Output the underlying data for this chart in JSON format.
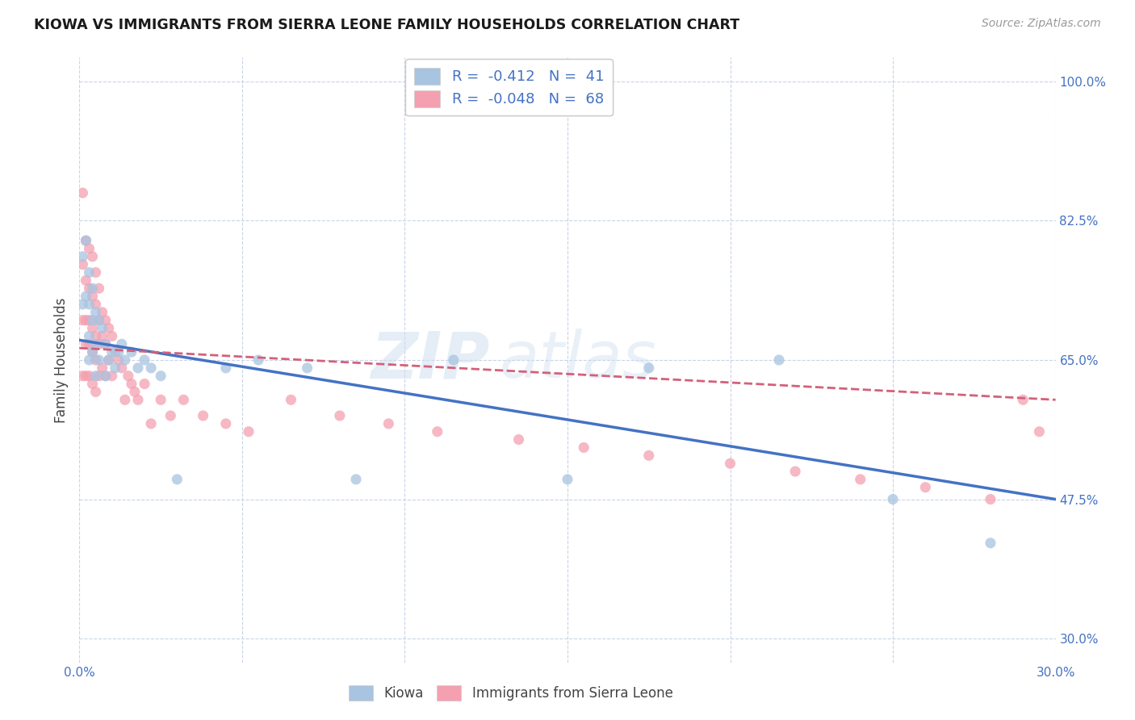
{
  "title": "KIOWA VS IMMIGRANTS FROM SIERRA LEONE FAMILY HOUSEHOLDS CORRELATION CHART",
  "source": "Source: ZipAtlas.com",
  "ylabel": "Family Households",
  "yticks": [
    "30.0%",
    "47.5%",
    "65.0%",
    "82.5%",
    "100.0%"
  ],
  "ytick_vals": [
    0.3,
    0.475,
    0.65,
    0.825,
    1.0
  ],
  "xlim": [
    0.0,
    0.3
  ],
  "ylim": [
    0.27,
    1.03
  ],
  "legend_kiowa_R": "-0.412",
  "legend_kiowa_N": "41",
  "legend_sl_R": "-0.048",
  "legend_sl_N": "68",
  "kiowa_color": "#a8c4e0",
  "sl_color": "#f4a0b0",
  "kiowa_line_color": "#4472c4",
  "sl_line_color": "#d4607a",
  "watermark": "ZIPatlas",
  "background_color": "#ffffff",
  "grid_color": "#c8d4e8",
  "kiowa_scatter_x": [
    0.001,
    0.001,
    0.002,
    0.002,
    0.003,
    0.003,
    0.003,
    0.003,
    0.004,
    0.004,
    0.004,
    0.005,
    0.005,
    0.005,
    0.006,
    0.006,
    0.007,
    0.008,
    0.008,
    0.009,
    0.01,
    0.011,
    0.012,
    0.013,
    0.014,
    0.016,
    0.018,
    0.02,
    0.022,
    0.025,
    0.03,
    0.045,
    0.055,
    0.07,
    0.085,
    0.115,
    0.15,
    0.175,
    0.215,
    0.25,
    0.28
  ],
  "kiowa_scatter_y": [
    0.78,
    0.72,
    0.8,
    0.73,
    0.76,
    0.72,
    0.68,
    0.65,
    0.74,
    0.7,
    0.66,
    0.71,
    0.67,
    0.63,
    0.7,
    0.65,
    0.69,
    0.67,
    0.63,
    0.65,
    0.66,
    0.64,
    0.66,
    0.67,
    0.65,
    0.66,
    0.64,
    0.65,
    0.64,
    0.63,
    0.5,
    0.64,
    0.65,
    0.64,
    0.5,
    0.65,
    0.5,
    0.64,
    0.65,
    0.475,
    0.42
  ],
  "sl_scatter_x": [
    0.001,
    0.001,
    0.001,
    0.001,
    0.002,
    0.002,
    0.002,
    0.002,
    0.002,
    0.003,
    0.003,
    0.003,
    0.003,
    0.003,
    0.004,
    0.004,
    0.004,
    0.004,
    0.004,
    0.005,
    0.005,
    0.005,
    0.005,
    0.005,
    0.006,
    0.006,
    0.006,
    0.006,
    0.007,
    0.007,
    0.007,
    0.008,
    0.008,
    0.008,
    0.009,
    0.009,
    0.01,
    0.01,
    0.011,
    0.012,
    0.013,
    0.014,
    0.015,
    0.016,
    0.017,
    0.018,
    0.02,
    0.022,
    0.025,
    0.028,
    0.032,
    0.038,
    0.045,
    0.052,
    0.065,
    0.08,
    0.095,
    0.11,
    0.135,
    0.155,
    0.175,
    0.2,
    0.22,
    0.24,
    0.26,
    0.28,
    0.29,
    0.295
  ],
  "sl_scatter_y": [
    0.86,
    0.77,
    0.7,
    0.63,
    0.8,
    0.75,
    0.7,
    0.67,
    0.63,
    0.79,
    0.74,
    0.7,
    0.67,
    0.63,
    0.78,
    0.73,
    0.69,
    0.66,
    0.62,
    0.76,
    0.72,
    0.68,
    0.65,
    0.61,
    0.74,
    0.7,
    0.67,
    0.63,
    0.71,
    0.68,
    0.64,
    0.7,
    0.67,
    0.63,
    0.69,
    0.65,
    0.68,
    0.63,
    0.66,
    0.65,
    0.64,
    0.6,
    0.63,
    0.62,
    0.61,
    0.6,
    0.62,
    0.57,
    0.6,
    0.58,
    0.6,
    0.58,
    0.57,
    0.56,
    0.6,
    0.58,
    0.57,
    0.56,
    0.55,
    0.54,
    0.53,
    0.52,
    0.51,
    0.5,
    0.49,
    0.475,
    0.6,
    0.56
  ]
}
